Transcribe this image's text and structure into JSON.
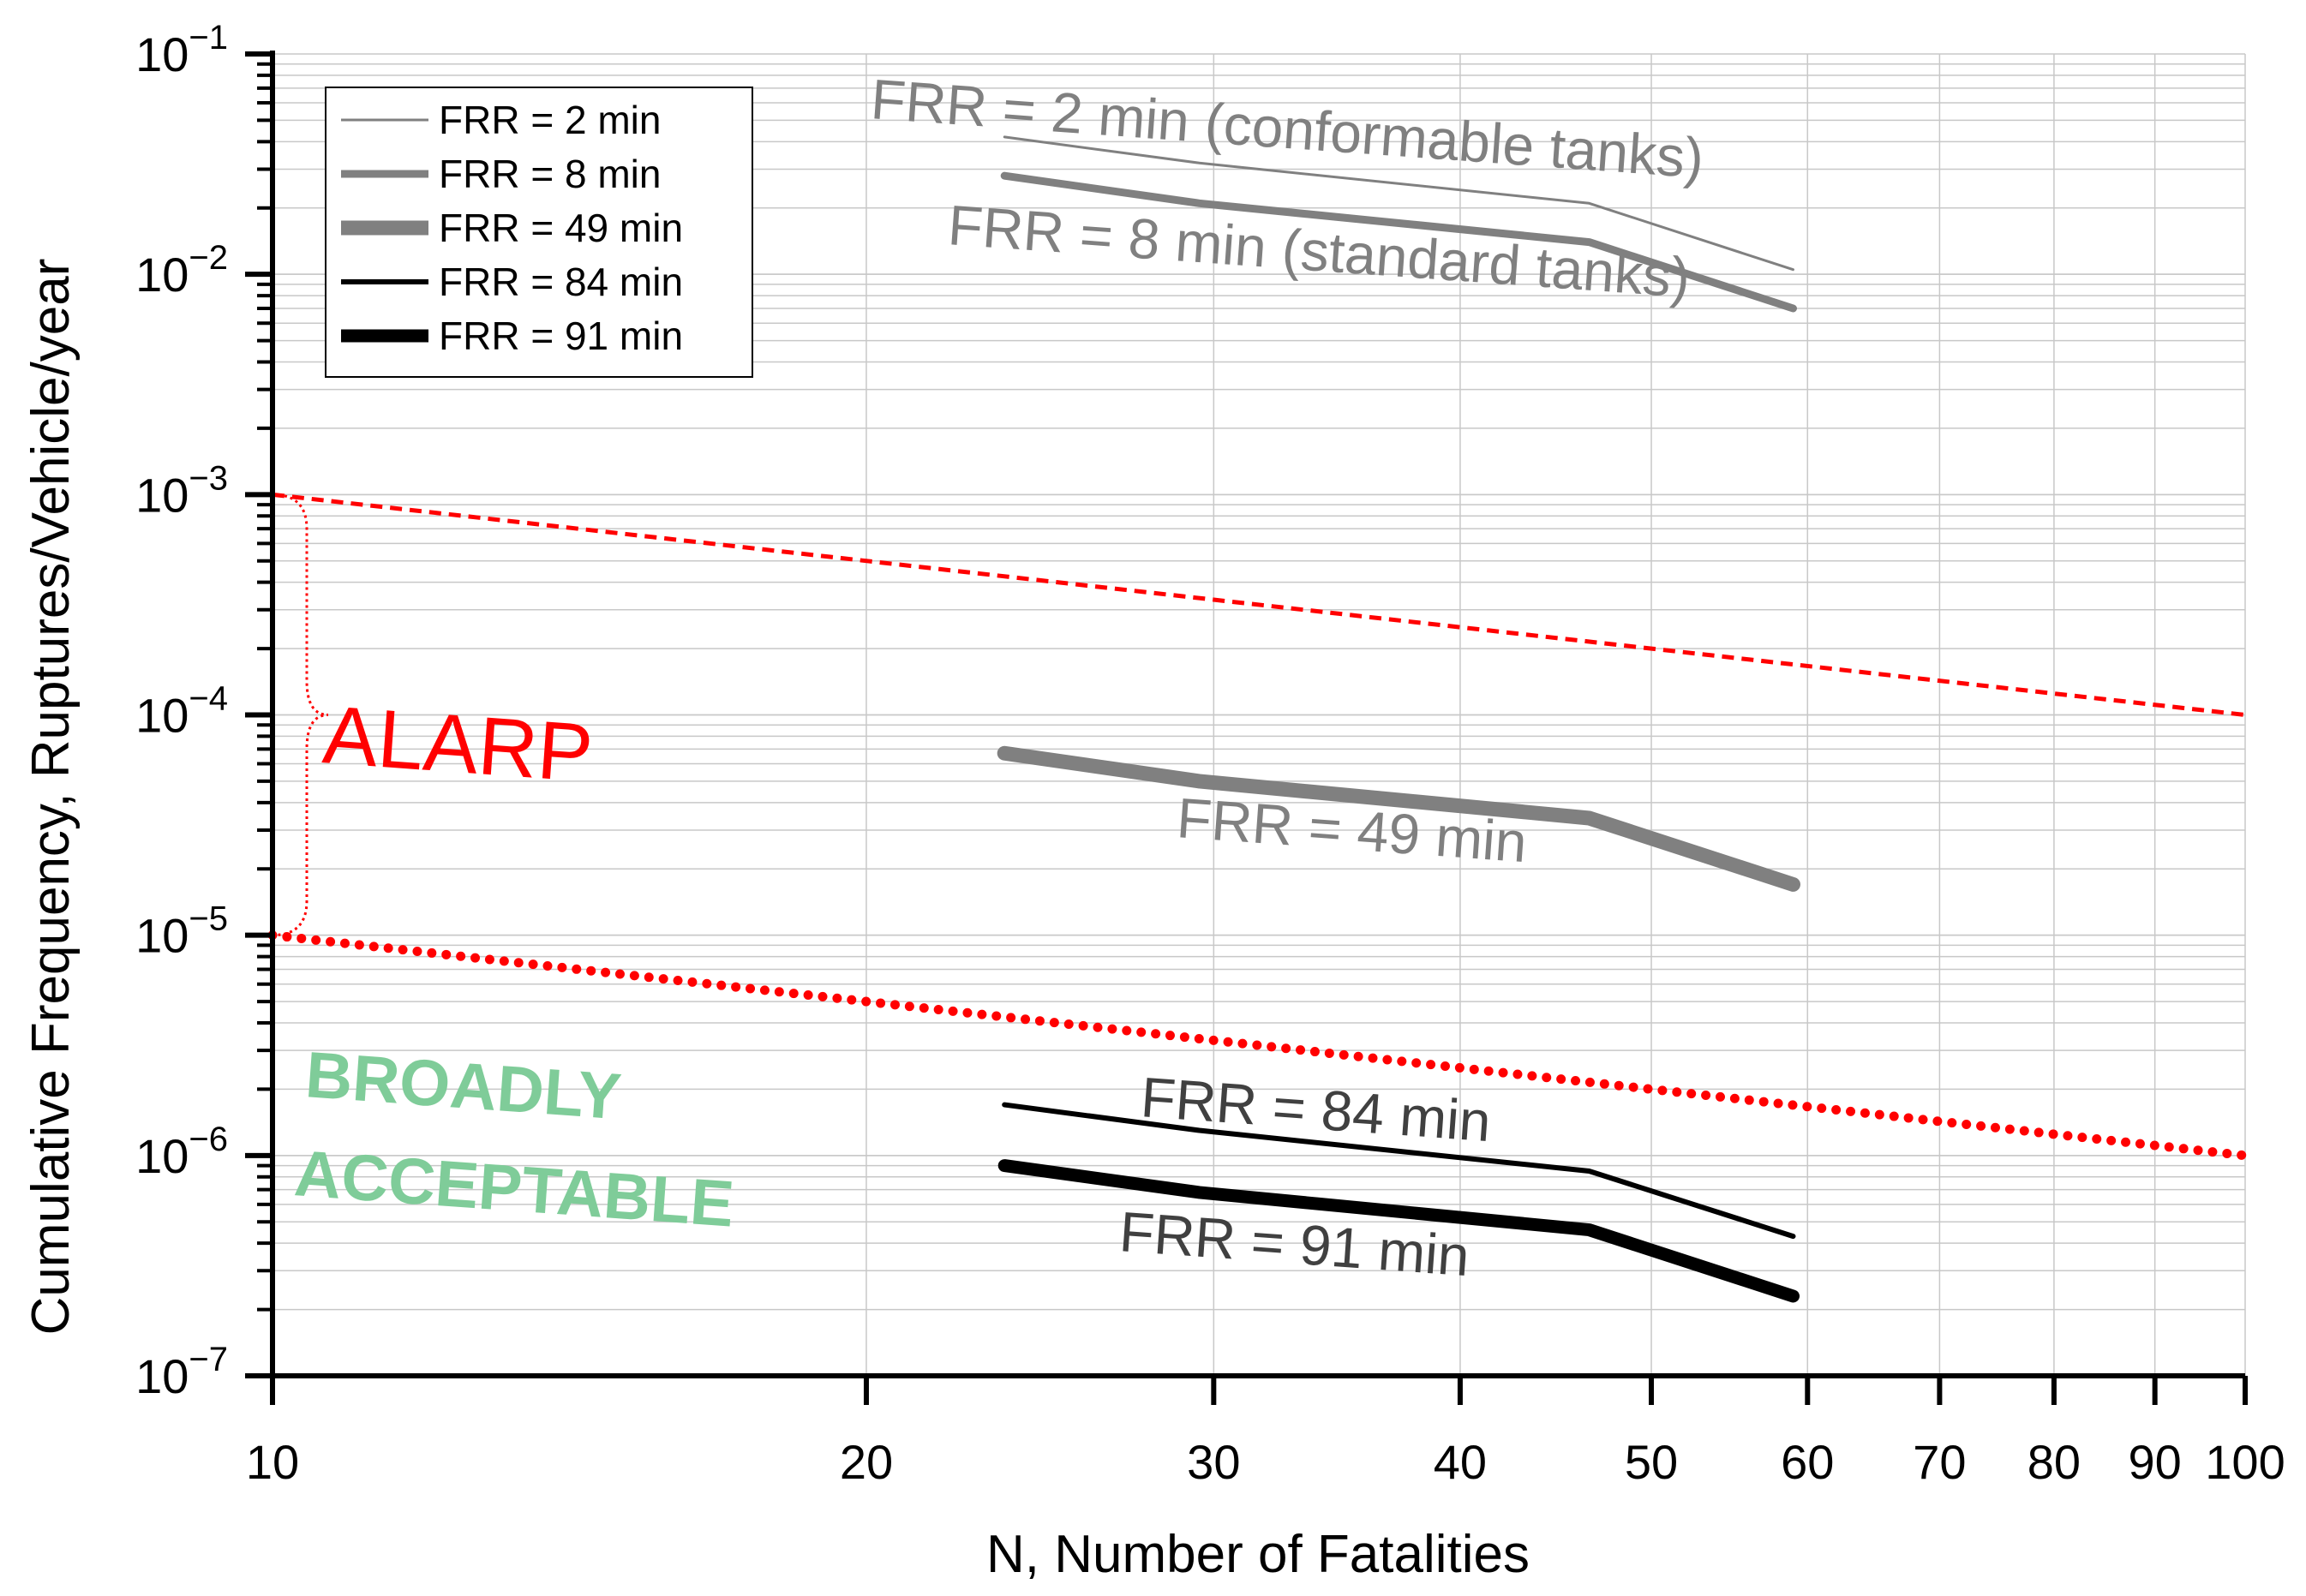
{
  "chart_data": {
    "type": "line",
    "title": "",
    "xlabel": "N, Number of Fatalities",
    "ylabel": "Cumulative Frequency, Ruptures/Vehicle/year",
    "xscale": "log",
    "yscale": "log",
    "xlim": [
      10,
      100
    ],
    "ylim": [
      1e-07,
      0.1
    ],
    "grid": true,
    "legend_position": "top-left",
    "x_tick_labels": [
      "10",
      "20",
      "30",
      "40",
      "50",
      "60",
      "70",
      "80",
      "90",
      "100"
    ],
    "x_ticks": [
      10,
      20,
      30,
      40,
      50,
      60,
      70,
      80,
      90,
      100
    ],
    "y_ticks": [
      {
        "value": 0.1,
        "base": "10",
        "exp": "−1"
      },
      {
        "value": 0.01,
        "base": "10",
        "exp": "−2"
      },
      {
        "value": 0.001,
        "base": "10",
        "exp": "−3"
      },
      {
        "value": 0.0001,
        "base": "10",
        "exp": "−4"
      },
      {
        "value": 1e-05,
        "base": "10",
        "exp": "−5"
      },
      {
        "value": 1e-06,
        "base": "10",
        "exp": "−6"
      },
      {
        "value": 1e-07,
        "base": "10",
        "exp": "−7"
      }
    ],
    "series": [
      {
        "name": "FRR = 2 min",
        "color": "#808080",
        "width": 3,
        "x": [
          23.5,
          29.5,
          46.5,
          59
        ],
        "y": [
          0.042,
          0.032,
          0.021,
          0.0105
        ]
      },
      {
        "name": "FRR = 8 min",
        "color": "#808080",
        "width": 9,
        "x": [
          23.5,
          29.5,
          46.5,
          59
        ],
        "y": [
          0.028,
          0.021,
          0.014,
          0.007
        ]
      },
      {
        "name": "FRR = 49 min",
        "color": "#808080",
        "width": 17,
        "x": [
          23.5,
          29.5,
          46.5,
          59
        ],
        "y": [
          6.7e-05,
          5e-05,
          3.4e-05,
          1.7e-05
        ]
      },
      {
        "name": "FRR = 84 min",
        "color": "#000000",
        "width": 6,
        "x": [
          23.5,
          29.5,
          46.5,
          59
        ],
        "y": [
          1.7e-06,
          1.3e-06,
          8.5e-07,
          4.3e-07
        ]
      },
      {
        "name": "FRR = 91 min",
        "color": "#000000",
        "width": 15,
        "x": [
          23.5,
          29.5,
          46.5,
          59
        ],
        "y": [
          9e-07,
          6.8e-07,
          4.6e-07,
          2.3e-07
        ]
      }
    ],
    "criteria_lines": [
      {
        "id": "upper",
        "color": "#ff0000",
        "x": [
          10,
          100
        ],
        "y": [
          0.001,
          0.0001
        ]
      },
      {
        "id": "lower",
        "color": "#ff0000",
        "x": [
          10,
          100
        ],
        "y": [
          1e-05,
          1e-06
        ]
      }
    ],
    "annotations": {
      "frr2": "FRR = 2 min (conformable tanks)",
      "frr8": "FRR = 8 min (standard tanks)",
      "frr49": "FRR = 49 min",
      "frr84": "FRR = 84 min",
      "frr91": "FRR = 91 min",
      "alarp": "ALARP",
      "broadly_line1": "BROADLY",
      "broadly_line2": "ACCEPTABLE"
    },
    "colors": {
      "alarp": "#ff0000",
      "broadly": "#7fcc99",
      "grid": "#c8c8c8",
      "annotation_gray": "#808080",
      "annotation_dark": "#404040"
    }
  }
}
